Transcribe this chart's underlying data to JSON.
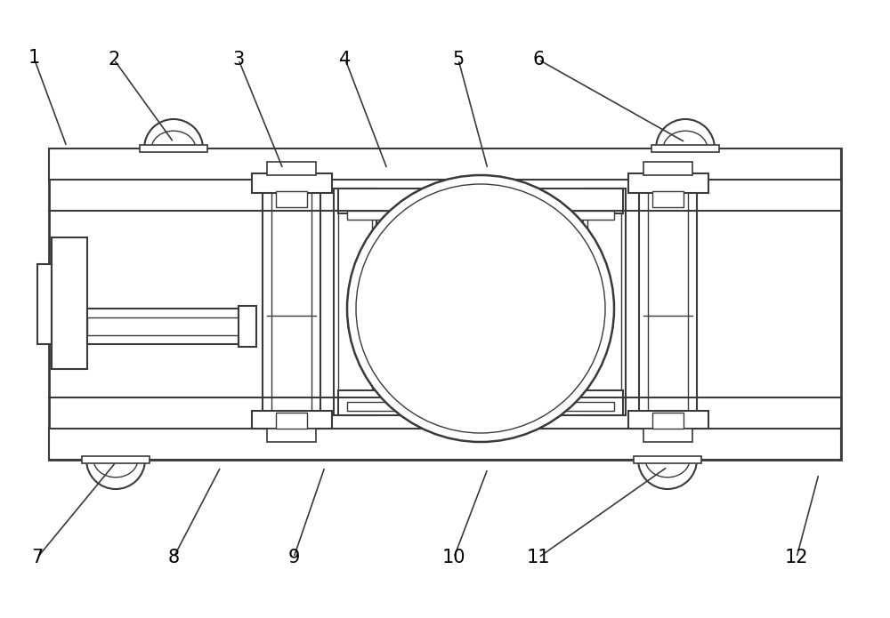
{
  "lc": "#3a3a3a",
  "lw": 1.5,
  "lw_t": 1.0,
  "fig_w": 10.0,
  "fig_h": 6.95,
  "labels": [
    [
      "1",
      75,
      530,
      38,
      630
    ],
    [
      "2",
      195,
      535,
      128,
      628
    ],
    [
      "3",
      318,
      505,
      268,
      628
    ],
    [
      "4",
      435,
      505,
      388,
      628
    ],
    [
      "5",
      548,
      505,
      515,
      628
    ],
    [
      "6",
      770,
      535,
      605,
      628
    ],
    [
      "7",
      130,
      175,
      42,
      68
    ],
    [
      "8",
      248,
      170,
      195,
      68
    ],
    [
      "9",
      365,
      170,
      330,
      68
    ],
    [
      "10",
      548,
      168,
      510,
      68
    ],
    [
      "11",
      750,
      170,
      605,
      68
    ],
    [
      "12",
      920,
      162,
      895,
      68
    ]
  ]
}
